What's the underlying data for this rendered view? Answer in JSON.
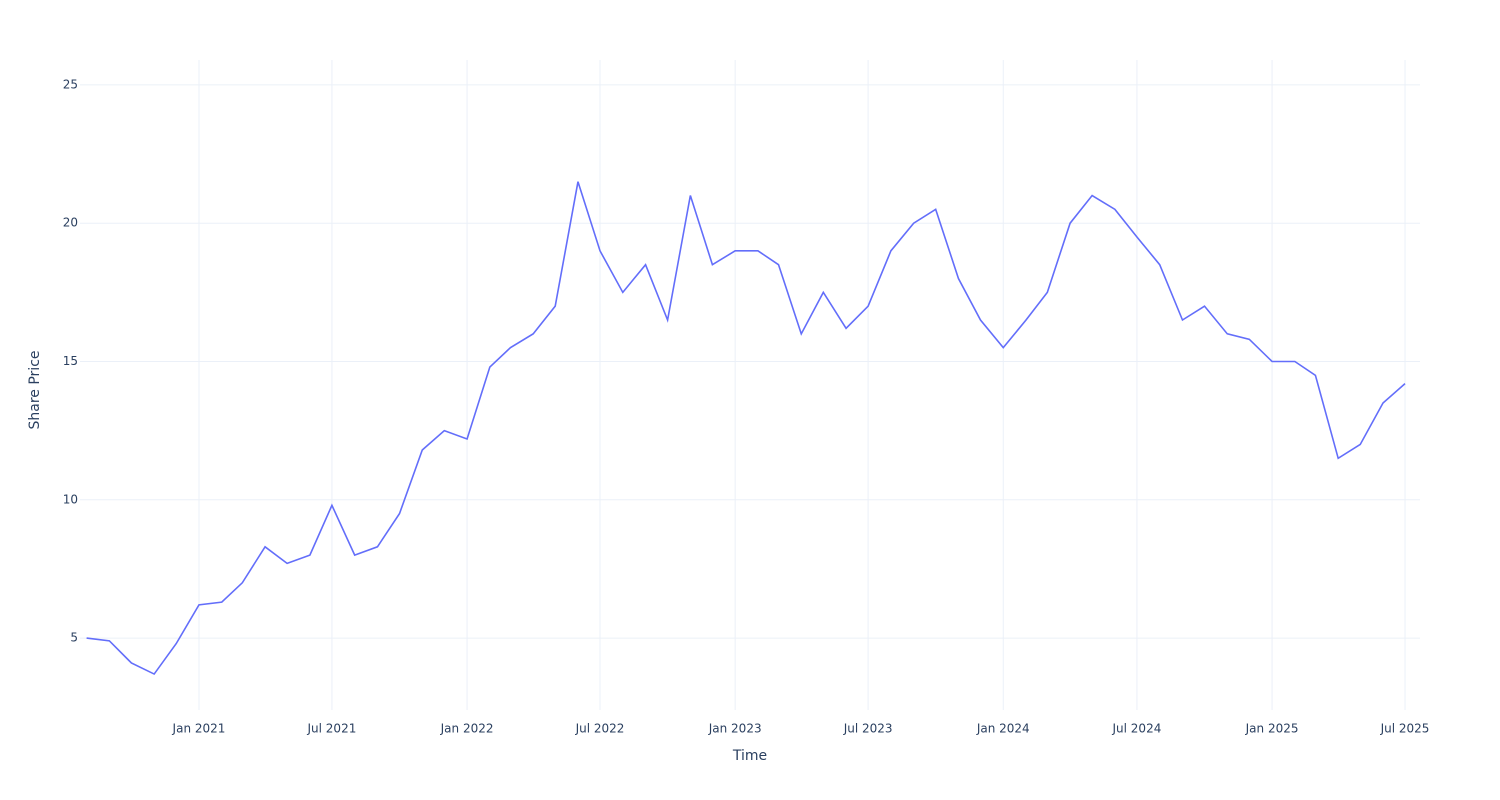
{
  "chart_data": {
    "type": "line",
    "x_label": "Time",
    "y_label": "Share Price",
    "x": [
      "2020-08",
      "2020-09",
      "2020-10",
      "2020-11",
      "2020-12",
      "2021-01",
      "2021-02",
      "2021-03",
      "2021-04",
      "2021-05",
      "2021-06",
      "2021-07",
      "2021-08",
      "2021-09",
      "2021-10",
      "2021-11",
      "2021-12",
      "2022-01",
      "2022-02",
      "2022-03",
      "2022-04",
      "2022-05",
      "2022-06",
      "2022-07",
      "2022-08",
      "2022-09",
      "2022-10",
      "2022-11",
      "2022-12",
      "2023-01",
      "2023-02",
      "2023-03",
      "2023-04",
      "2023-05",
      "2023-06",
      "2023-07",
      "2023-08",
      "2023-09",
      "2023-10",
      "2023-11",
      "2023-12",
      "2024-01",
      "2024-02",
      "2024-03",
      "2024-04",
      "2024-05",
      "2024-06",
      "2024-07",
      "2024-08",
      "2024-09",
      "2024-10",
      "2024-11",
      "2024-12",
      "2025-01",
      "2025-02",
      "2025-03",
      "2025-04",
      "2025-05",
      "2025-06",
      "2025-07"
    ],
    "series": [
      {
        "name": "Share Price",
        "color": "#636efa",
        "values": [
          5.0,
          4.9,
          4.1,
          3.7,
          4.8,
          6.2,
          6.3,
          7.0,
          8.3,
          7.7,
          8.0,
          9.8,
          8.0,
          8.3,
          9.5,
          11.8,
          12.5,
          12.2,
          14.8,
          15.5,
          16.0,
          17.0,
          21.5,
          19.0,
          17.5,
          18.5,
          16.5,
          21.0,
          18.5,
          19.0,
          19.0,
          18.5,
          16.0,
          17.5,
          16.2,
          17.0,
          19.0,
          20.0,
          20.5,
          18.0,
          16.5,
          15.5,
          16.5,
          17.5,
          20.0,
          21.0,
          20.5,
          19.5,
          18.5,
          16.5,
          17.0,
          16.0,
          15.8,
          15.0,
          15.0,
          14.5,
          11.5,
          12.0,
          13.5,
          14.2
        ]
      }
    ],
    "xlim": [
      "2020-08",
      "2025-08"
    ],
    "xticks": [
      {
        "value": "2021-01",
        "label": "Jan 2021"
      },
      {
        "value": "2021-07",
        "label": "Jul 2021"
      },
      {
        "value": "2022-01",
        "label": "Jan 2022"
      },
      {
        "value": "2022-07",
        "label": "Jul 2022"
      },
      {
        "value": "2023-01",
        "label": "Jan 2023"
      },
      {
        "value": "2023-07",
        "label": "Jul 2023"
      },
      {
        "value": "2024-01",
        "label": "Jan 2024"
      },
      {
        "value": "2024-07",
        "label": "Jul 2024"
      },
      {
        "value": "2025-01",
        "label": "Jan 2025"
      },
      {
        "value": "2025-07",
        "label": "Jul 2025"
      }
    ],
    "ylim": [
      2.4,
      25.9
    ],
    "yticks": [
      5,
      10,
      15,
      20,
      25
    ],
    "grid": true
  }
}
